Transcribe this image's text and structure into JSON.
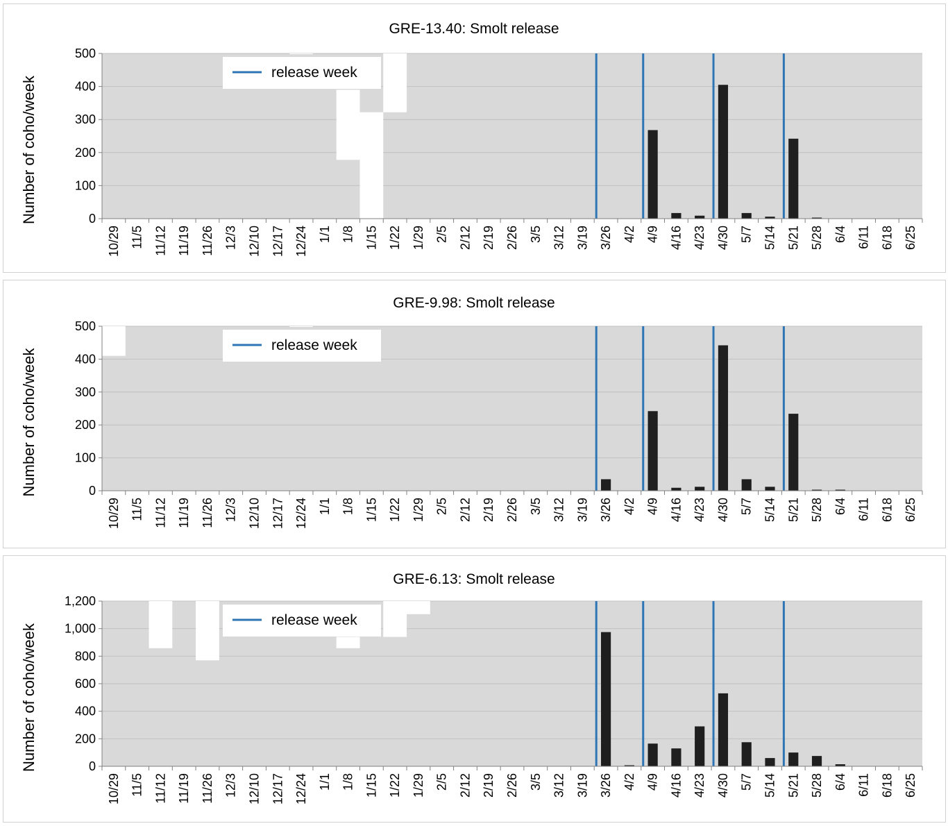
{
  "chart_data": [
    {
      "type": "bar",
      "title": "GRE-13.40: Smolt release",
      "ylabel": "Number of coho/week",
      "ylim": [
        0,
        500
      ],
      "yticks": [
        "0",
        "100",
        "200",
        "300",
        "400",
        "500"
      ],
      "categories": [
        "10/29",
        "11/5",
        "11/12",
        "11/19",
        "11/26",
        "12/3",
        "12/10",
        "12/17",
        "12/24",
        "1/1",
        "1/8",
        "1/15",
        "1/22",
        "1/29",
        "2/5",
        "2/12",
        "2/19",
        "2/26",
        "3/5",
        "3/12",
        "3/19",
        "3/26",
        "4/2",
        "4/9",
        "4/16",
        "4/23",
        "4/30",
        "5/7",
        "5/14",
        "5/21",
        "5/28",
        "6/4",
        "6/11",
        "6/18",
        "6/25"
      ],
      "values": [
        0,
        0,
        0,
        0,
        0,
        0,
        0,
        0,
        0,
        0,
        0,
        0,
        0,
        0,
        0,
        0,
        0,
        0,
        0,
        0,
        0,
        0,
        0,
        268,
        17,
        9,
        405,
        17,
        6,
        242,
        2,
        0,
        0,
        0,
        0
      ],
      "release_weeks": [
        "3/26",
        "4/9",
        "4/30",
        "5/21"
      ],
      "legend": {
        "label": "release week",
        "color": "#2e75b6"
      },
      "gap_fills": [
        {
          "category": "1/8",
          "from": 178,
          "to": 390
        },
        {
          "category": "1/15",
          "from": 0,
          "to": 322
        },
        {
          "category": "1/22",
          "from": 322,
          "to": 500
        },
        {
          "category": "12/24",
          "from": 498,
          "to": 500
        }
      ]
    },
    {
      "type": "bar",
      "title": "GRE-9.98: Smolt release",
      "ylabel": "Number of coho/week",
      "ylim": [
        0,
        500
      ],
      "yticks": [
        "0",
        "100",
        "200",
        "300",
        "400",
        "500"
      ],
      "categories": [
        "10/29",
        "11/5",
        "11/12",
        "11/19",
        "11/26",
        "12/3",
        "12/10",
        "12/17",
        "12/24",
        "1/1",
        "1/8",
        "1/15",
        "1/22",
        "1/29",
        "2/5",
        "2/12",
        "2/19",
        "2/26",
        "3/5",
        "3/12",
        "3/19",
        "3/26",
        "4/2",
        "4/9",
        "4/16",
        "4/23",
        "4/30",
        "5/7",
        "5/14",
        "5/21",
        "5/28",
        "6/4",
        "6/11",
        "6/18",
        "6/25"
      ],
      "values": [
        0,
        0,
        0,
        0,
        0,
        0,
        0,
        0,
        0,
        0,
        0,
        0,
        0,
        0,
        0,
        0,
        0,
        0,
        0,
        0,
        0,
        35,
        0,
        242,
        9,
        12,
        442,
        35,
        12,
        234,
        2,
        1,
        0,
        0,
        0
      ],
      "release_weeks": [
        "3/26",
        "4/9",
        "4/30",
        "5/21"
      ],
      "legend": {
        "label": "release week",
        "color": "#2e75b6"
      },
      "gap_fills": [
        {
          "category": "10/29",
          "from": 410,
          "to": 500
        },
        {
          "category": "12/24",
          "from": 498,
          "to": 500
        }
      ]
    },
    {
      "type": "bar",
      "title": "GRE-6.13: Smolt release",
      "ylabel": "Number of coho/week",
      "ylim": [
        0,
        1200
      ],
      "yticks": [
        "0",
        "200",
        "400",
        "600",
        "800",
        "1,000",
        "1,200"
      ],
      "categories": [
        "10/29",
        "11/5",
        "11/12",
        "11/19",
        "11/26",
        "12/3",
        "12/10",
        "12/17",
        "12/24",
        "1/1",
        "1/8",
        "1/15",
        "1/22",
        "1/29",
        "2/5",
        "2/12",
        "2/19",
        "2/26",
        "3/5",
        "3/12",
        "3/19",
        "3/26",
        "4/2",
        "4/9",
        "4/16",
        "4/23",
        "4/30",
        "5/7",
        "5/14",
        "5/21",
        "5/28",
        "6/4",
        "6/11",
        "6/18",
        "6/25"
      ],
      "values": [
        0,
        0,
        0,
        0,
        0,
        0,
        0,
        0,
        0,
        0,
        0,
        0,
        0,
        0,
        0,
        0,
        0,
        0,
        0,
        0,
        0,
        975,
        3,
        165,
        130,
        290,
        530,
        175,
        60,
        100,
        75,
        15,
        0,
        0,
        0
      ],
      "release_weeks": [
        "3/26",
        "4/9",
        "4/30",
        "5/21"
      ],
      "legend": {
        "label": "release week",
        "color": "#2e75b6"
      },
      "gap_fills": [
        {
          "category": "11/12",
          "from": 858,
          "to": 1200
        },
        {
          "category": "11/26",
          "from": 770,
          "to": 1200
        },
        {
          "category": "1/8",
          "from": 858,
          "to": 940
        },
        {
          "category": "1/22",
          "from": 940,
          "to": 1200
        },
        {
          "category": "1/29",
          "from": 1105,
          "to": 1200
        }
      ]
    }
  ]
}
